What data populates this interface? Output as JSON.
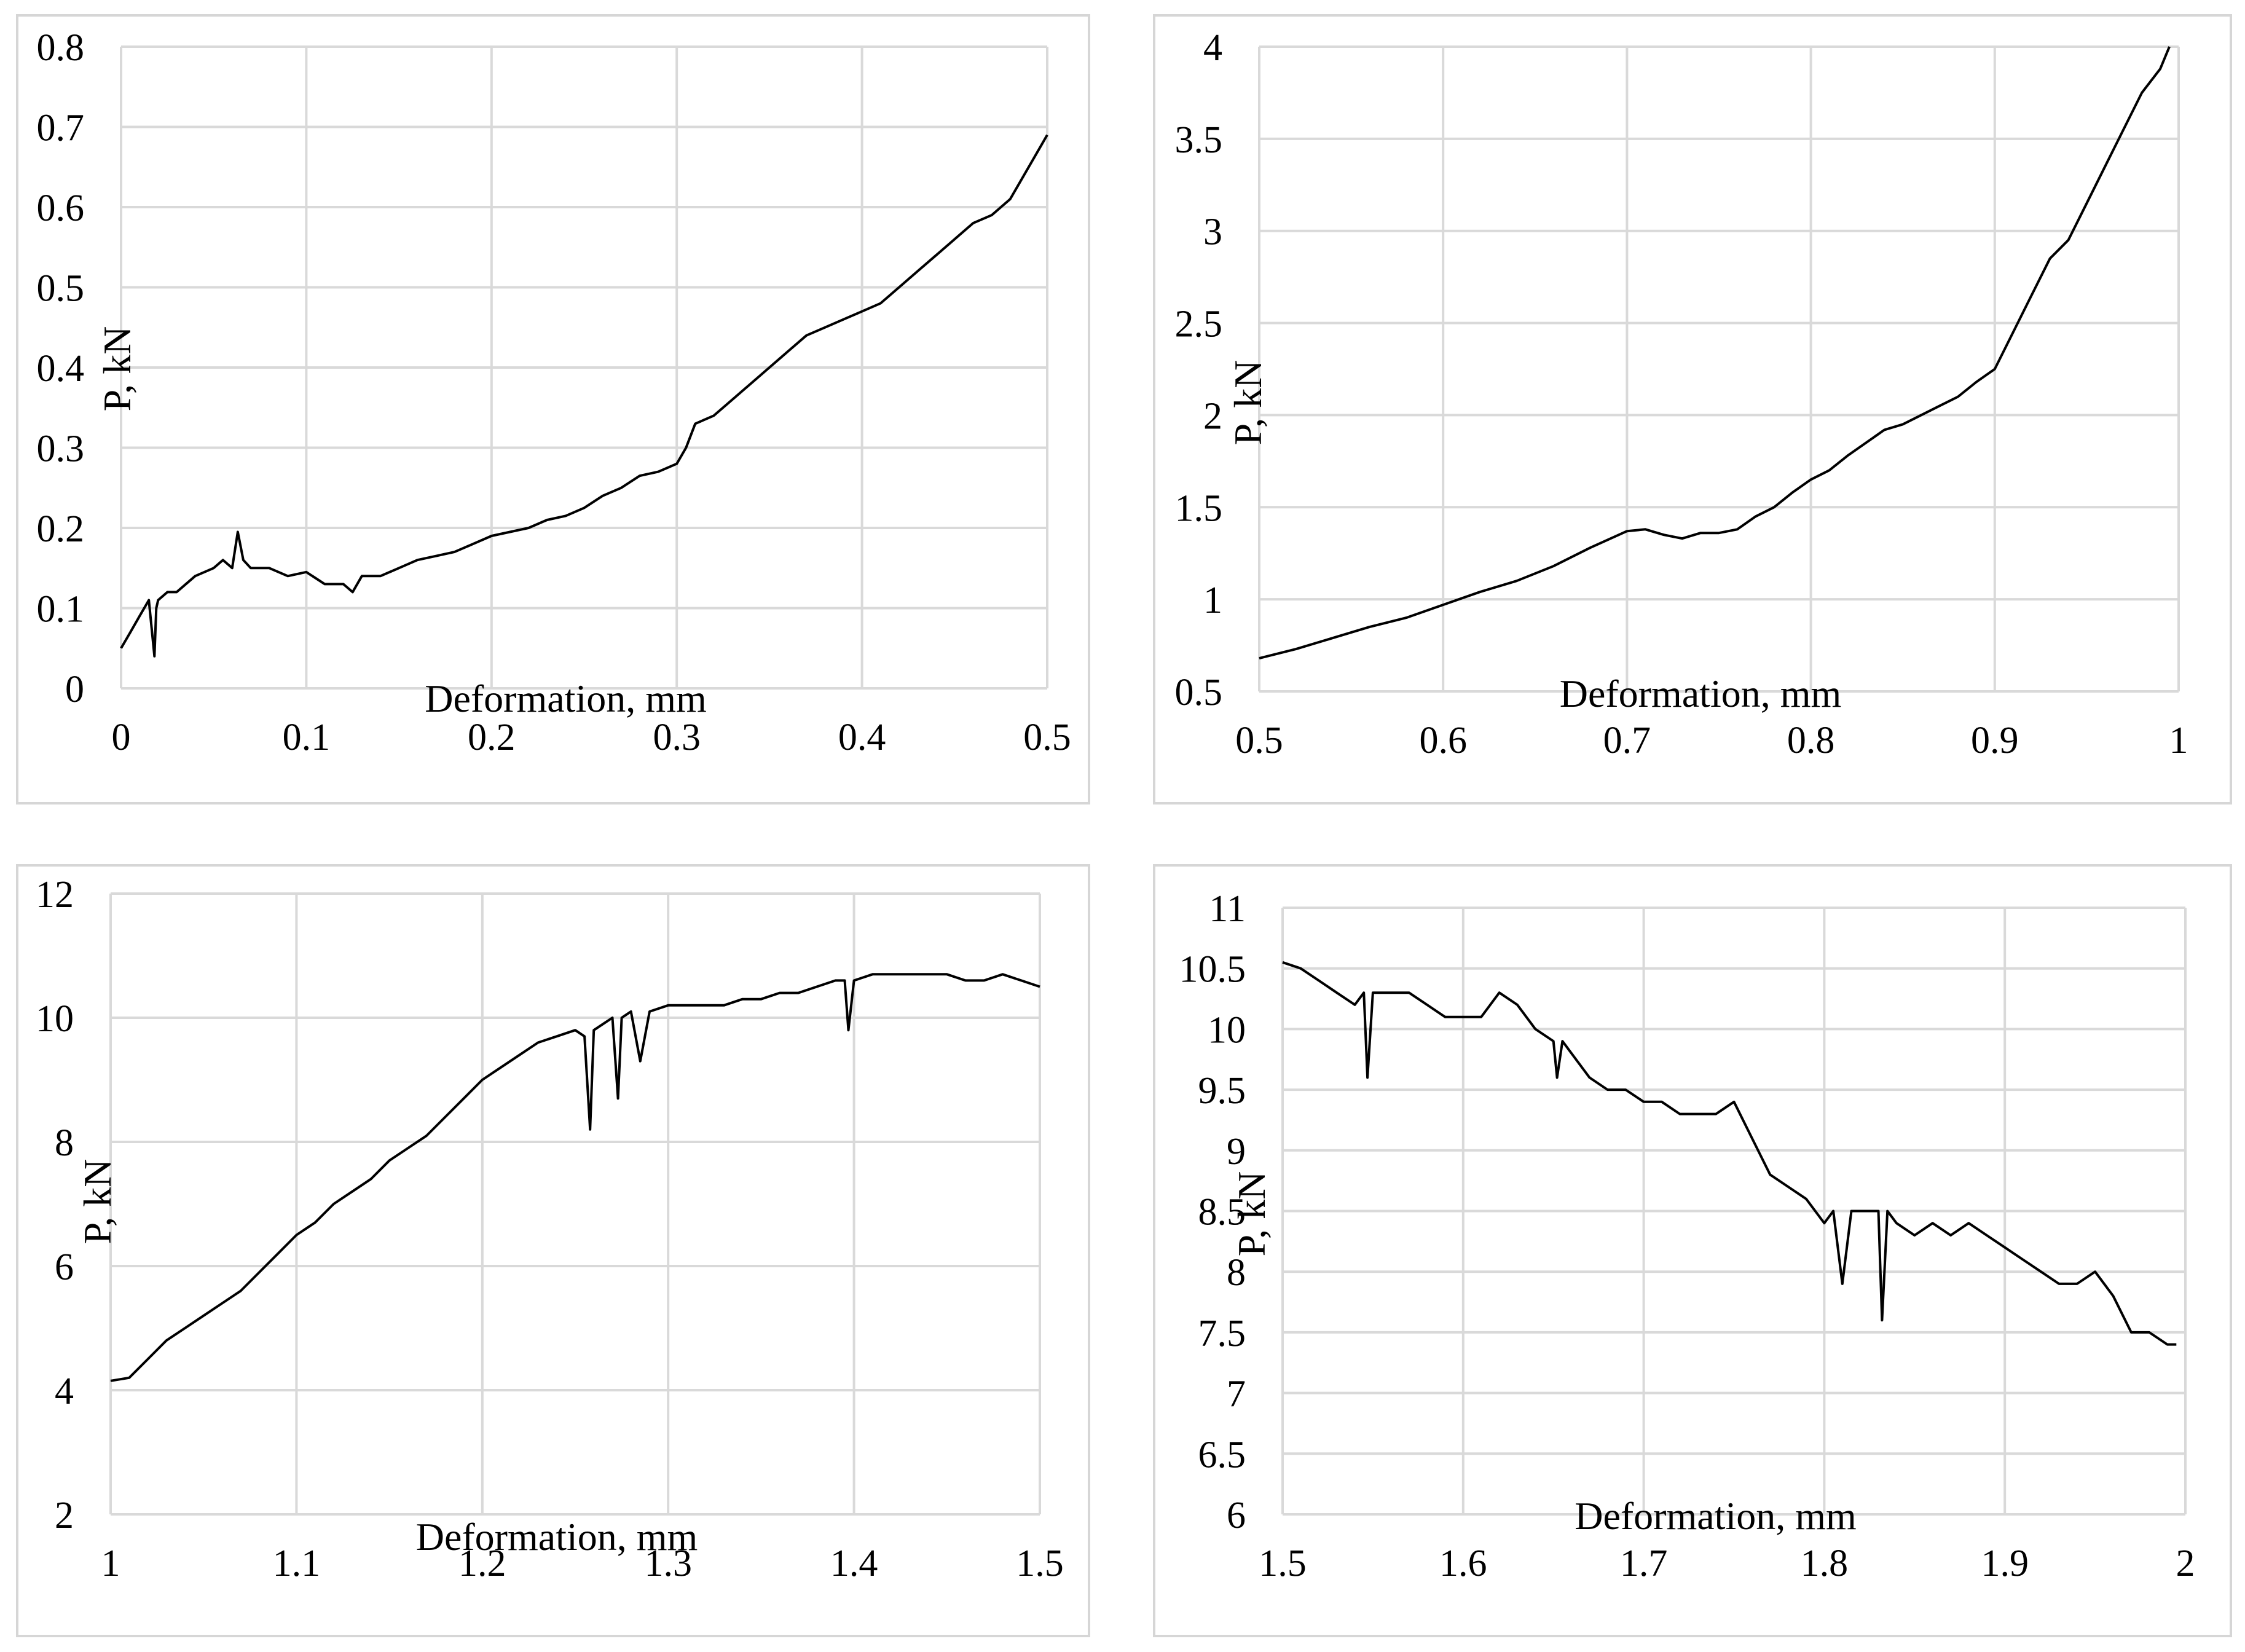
{
  "chart_data": [
    {
      "type": "line",
      "xlabel": "Deformation, mm",
      "ylabel": "P, kN",
      "xlim": [
        0,
        0.5
      ],
      "ylim": [
        0,
        0.8
      ],
      "x_ticks": [
        "0",
        "0.1",
        "0.2",
        "0.3",
        "0.4",
        "0.5"
      ],
      "y_ticks": [
        "0",
        "0.1",
        "0.2",
        "0.3",
        "0.4",
        "0.5",
        "0.6",
        "0.7",
        "0.8"
      ],
      "grid": true,
      "series": [
        {
          "x": [
            0.0,
            0.005,
            0.01,
            0.015,
            0.018,
            0.019,
            0.02,
            0.025,
            0.03,
            0.04,
            0.05,
            0.055,
            0.06,
            0.063,
            0.066,
            0.07,
            0.075,
            0.08,
            0.09,
            0.1,
            0.11,
            0.12,
            0.125,
            0.13,
            0.14,
            0.15,
            0.16,
            0.17,
            0.18,
            0.19,
            0.2,
            0.21,
            0.22,
            0.23,
            0.24,
            0.25,
            0.26,
            0.27,
            0.28,
            0.29,
            0.3,
            0.305,
            0.31,
            0.32,
            0.33,
            0.34,
            0.35,
            0.36,
            0.37,
            0.38,
            0.39,
            0.4,
            0.41,
            0.42,
            0.43,
            0.44,
            0.45,
            0.46,
            0.47,
            0.48,
            0.49,
            0.5
          ],
          "y": [
            0.05,
            0.07,
            0.09,
            0.11,
            0.04,
            0.1,
            0.11,
            0.12,
            0.12,
            0.14,
            0.15,
            0.16,
            0.15,
            0.195,
            0.16,
            0.15,
            0.15,
            0.15,
            0.14,
            0.145,
            0.13,
            0.13,
            0.12,
            0.14,
            0.14,
            0.15,
            0.16,
            0.165,
            0.17,
            0.18,
            0.19,
            0.195,
            0.2,
            0.21,
            0.215,
            0.225,
            0.24,
            0.25,
            0.265,
            0.27,
            0.28,
            0.3,
            0.33,
            0.34,
            0.36,
            0.38,
            0.4,
            0.42,
            0.44,
            0.45,
            0.46,
            0.47,
            0.48,
            0.5,
            0.52,
            0.54,
            0.56,
            0.58,
            0.59,
            0.61,
            0.65,
            0.69
          ]
        }
      ]
    },
    {
      "type": "line",
      "xlabel": "Deformation, mm",
      "ylabel": "P, kN",
      "xlim": [
        0.5,
        1
      ],
      "ylim": [
        0.5,
        4
      ],
      "x_ticks": [
        "0.5",
        "0.6",
        "0.7",
        "0.8",
        "0.9",
        "1"
      ],
      "y_ticks": [
        "0.5",
        "1",
        "1.5",
        "2",
        "2.5",
        "3",
        "3.5",
        "4"
      ],
      "grid": true,
      "series": [
        {
          "x": [
            0.5,
            0.52,
            0.54,
            0.56,
            0.58,
            0.6,
            0.62,
            0.64,
            0.66,
            0.68,
            0.7,
            0.71,
            0.72,
            0.73,
            0.74,
            0.75,
            0.76,
            0.77,
            0.78,
            0.79,
            0.8,
            0.81,
            0.82,
            0.83,
            0.84,
            0.85,
            0.86,
            0.87,
            0.88,
            0.89,
            0.9,
            0.91,
            0.92,
            0.93,
            0.94,
            0.95,
            0.96,
            0.97,
            0.98,
            0.99,
            0.995
          ],
          "y": [
            0.68,
            0.73,
            0.79,
            0.85,
            0.9,
            0.97,
            1.04,
            1.1,
            1.18,
            1.28,
            1.37,
            1.38,
            1.35,
            1.33,
            1.36,
            1.36,
            1.38,
            1.45,
            1.5,
            1.58,
            1.65,
            1.7,
            1.78,
            1.85,
            1.92,
            1.95,
            2.0,
            2.05,
            2.1,
            2.18,
            2.25,
            2.45,
            2.65,
            2.85,
            2.95,
            3.15,
            3.35,
            3.55,
            3.75,
            3.88,
            4.0
          ]
        }
      ]
    },
    {
      "type": "line",
      "xlabel": "Deformation, mm",
      "ylabel": "P, kN",
      "xlim": [
        1,
        1.5
      ],
      "ylim": [
        2,
        12
      ],
      "x_ticks": [
        "1",
        "1.1",
        "1.2",
        "1.3",
        "1.4",
        "1.5"
      ],
      "y_ticks": [
        "2",
        "4",
        "6",
        "8",
        "10",
        "12"
      ],
      "grid": true,
      "series": [
        {
          "x": [
            1.0,
            1.01,
            1.02,
            1.03,
            1.04,
            1.05,
            1.06,
            1.07,
            1.08,
            1.09,
            1.1,
            1.11,
            1.12,
            1.13,
            1.14,
            1.15,
            1.16,
            1.17,
            1.18,
            1.19,
            1.2,
            1.21,
            1.22,
            1.23,
            1.24,
            1.25,
            1.255,
            1.258,
            1.26,
            1.265,
            1.27,
            1.273,
            1.275,
            1.28,
            1.285,
            1.29,
            1.3,
            1.31,
            1.32,
            1.33,
            1.34,
            1.35,
            1.36,
            1.37,
            1.38,
            1.39,
            1.395,
            1.397,
            1.4,
            1.41,
            1.42,
            1.43,
            1.44,
            1.45,
            1.46,
            1.47,
            1.48,
            1.49,
            1.5
          ],
          "y": [
            4.15,
            4.2,
            4.5,
            4.8,
            5.0,
            5.2,
            5.4,
            5.6,
            5.9,
            6.2,
            6.5,
            6.7,
            7.0,
            7.2,
            7.4,
            7.7,
            7.9,
            8.1,
            8.4,
            8.7,
            9.0,
            9.2,
            9.4,
            9.6,
            9.7,
            9.8,
            9.7,
            8.2,
            9.8,
            9.9,
            10.0,
            8.7,
            10.0,
            10.1,
            9.3,
            10.1,
            10.2,
            10.2,
            10.2,
            10.2,
            10.3,
            10.3,
            10.4,
            10.4,
            10.5,
            10.6,
            10.6,
            9.8,
            10.6,
            10.7,
            10.7,
            10.7,
            10.7,
            10.7,
            10.6,
            10.6,
            10.7,
            10.6,
            10.5
          ]
        }
      ]
    },
    {
      "type": "line",
      "xlabel": "Deformation, mm",
      "ylabel": "P, kN",
      "xlim": [
        1.5,
        2
      ],
      "ylim": [
        6,
        11
      ],
      "x_ticks": [
        "1.5",
        "1.6",
        "1.7",
        "1.8",
        "1.9",
        "2"
      ],
      "y_ticks": [
        "6",
        "6.5",
        "7",
        "7.5",
        "8",
        "8.5",
        "9",
        "9.5",
        "10",
        "10.5",
        "11"
      ],
      "grid": true,
      "series": [
        {
          "x": [
            1.5,
            1.51,
            1.52,
            1.53,
            1.54,
            1.545,
            1.547,
            1.55,
            1.56,
            1.57,
            1.58,
            1.59,
            1.6,
            1.61,
            1.62,
            1.63,
            1.64,
            1.65,
            1.652,
            1.655,
            1.66,
            1.67,
            1.68,
            1.69,
            1.7,
            1.71,
            1.72,
            1.73,
            1.74,
            1.75,
            1.76,
            1.77,
            1.78,
            1.79,
            1.8,
            1.805,
            1.81,
            1.815,
            1.82,
            1.825,
            1.83,
            1.832,
            1.835,
            1.84,
            1.85,
            1.86,
            1.87,
            1.88,
            1.89,
            1.9,
            1.91,
            1.92,
            1.93,
            1.94,
            1.95,
            1.96,
            1.97,
            1.98,
            1.99,
            1.995
          ],
          "y": [
            10.55,
            10.5,
            10.4,
            10.3,
            10.2,
            10.3,
            9.6,
            10.3,
            10.3,
            10.3,
            10.2,
            10.1,
            10.1,
            10.1,
            10.3,
            10.2,
            10.0,
            9.9,
            9.6,
            9.9,
            9.8,
            9.6,
            9.5,
            9.5,
            9.4,
            9.4,
            9.3,
            9.3,
            9.3,
            9.4,
            9.1,
            8.8,
            8.7,
            8.6,
            8.4,
            8.5,
            7.9,
            8.5,
            8.5,
            8.5,
            8.5,
            7.6,
            8.5,
            8.4,
            8.3,
            8.4,
            8.3,
            8.4,
            8.3,
            8.2,
            8.1,
            8.0,
            7.9,
            7.9,
            8.0,
            7.8,
            7.5,
            7.5,
            7.4,
            7.4
          ]
        }
      ]
    }
  ]
}
